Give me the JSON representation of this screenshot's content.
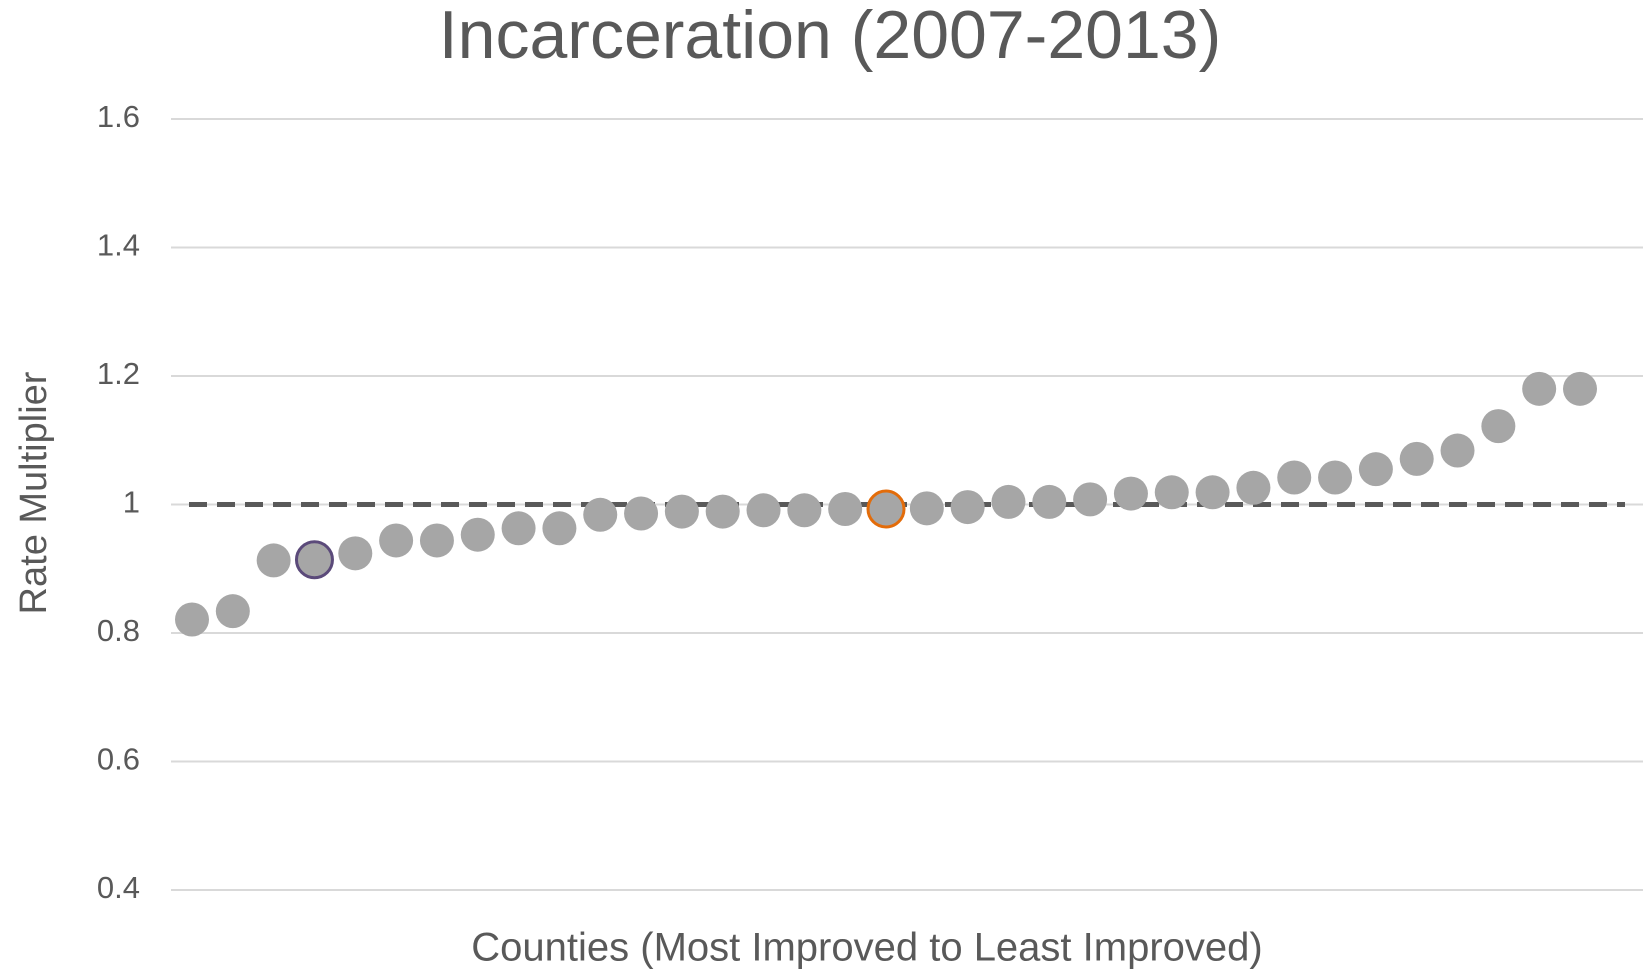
{
  "chart_data": {
    "type": "dot",
    "title": "Incarceration (2007-2013)",
    "x_label": "Counties (Most Improved to Least Improved)",
    "y_label": "Rate Multiplier",
    "categories": [
      null,
      null,
      null,
      null,
      null,
      null,
      null,
      null,
      null,
      null,
      null,
      null,
      null,
      null,
      null,
      null,
      null,
      null,
      null,
      null,
      null,
      null,
      null,
      null,
      null,
      null,
      null,
      null,
      null,
      null,
      null,
      null,
      null,
      null,
      null
    ],
    "values": [
      0.821,
      0.834,
      0.913,
      0.914,
      0.924,
      0.944,
      0.944,
      0.953,
      0.963,
      0.963,
      0.984,
      0.986,
      0.989,
      0.989,
      0.991,
      0.991,
      0.993,
      0.993,
      0.994,
      0.996,
      1.004,
      1.004,
      1.008,
      1.017,
      1.019,
      1.019,
      1.026,
      1.042,
      1.042,
      1.055,
      1.071,
      1.084,
      1.122,
      1.18,
      1.18
    ],
    "color": "#a6a6a6",
    "edge_colors": [
      null,
      null,
      null,
      "#5b4a7a",
      null,
      null,
      null,
      null,
      null,
      null,
      null,
      null,
      null,
      null,
      null,
      null,
      null,
      "#e36c0a",
      null,
      null,
      null,
      null,
      null,
      null,
      null,
      null,
      null,
      null,
      null,
      null,
      null,
      null,
      null,
      null,
      null
    ],
    "reference_line": {
      "value": 1,
      "style": "dashed",
      "color": "#595959"
    },
    "ylim": [
      0.4,
      1.6
    ],
    "yticks": [
      0.4,
      0.6,
      0.8,
      1,
      1.2,
      1.4,
      1.6
    ],
    "grid": true
  }
}
